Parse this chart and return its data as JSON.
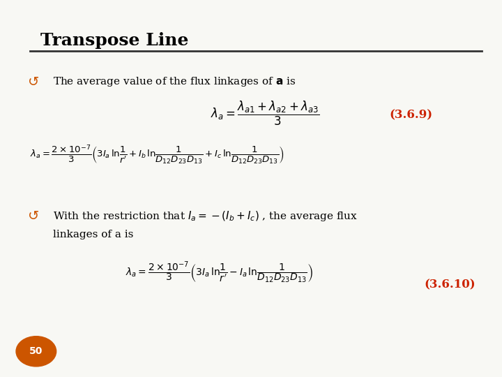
{
  "title": "Transpose Line",
  "title_color": "#000000",
  "text_color": "#000000",
  "red_color": "#cc2200",
  "orange_color": "#cc5500",
  "bullet_color": "#cc5500",
  "slide_bg": "#ffffff",
  "slide_fill": "#f8f8f4",
  "eq1": "$\\lambda_a = \\dfrac{\\lambda_{a1} + \\lambda_{a2} + \\lambda_{a3}}{3}$",
  "eq1_label": "(3.6.9)",
  "eq2": "$\\lambda_a = \\dfrac{2\\times10^{-7}}{3}\\left(3I_a\\,\\mathrm{ln}\\dfrac{1}{r'} + I_b\\,\\mathrm{ln}\\dfrac{1}{D_{12}D_{23}D_{13}} + I_c\\,\\mathrm{ln}\\dfrac{1}{D_{12}D_{23}D_{13}}\\right)$",
  "eq3": "$\\lambda_a = \\dfrac{2\\times10^{-7}}{3}\\left(3I_a\\,\\mathrm{ln}\\dfrac{1}{r'} - I_a\\,\\mathrm{ln}\\dfrac{1}{D_{12}D_{23}D_{13}}\\right)$",
  "eq3_label": "(3.6.10)",
  "bullet1": "The average value of the flux linkages of $\\mathbf{a}$ is",
  "bullet2_part1": "With the restriction that $\\boldsymbol{I_a} = -(\\boldsymbol{I_b} + \\boldsymbol{I_c})$ , the average flux",
  "bullet2_part2": "linkages of a is",
  "page_num": "50"
}
